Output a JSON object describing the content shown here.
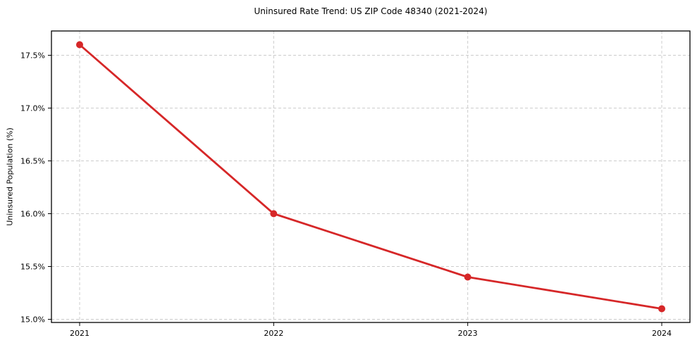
{
  "chart_data": {
    "type": "line",
    "title": "Uninsured Rate Trend: US ZIP Code 48340 (2021-2024)",
    "xlabel": "",
    "ylabel": "Uninsured Population (%)",
    "x": [
      2021,
      2022,
      2023,
      2024
    ],
    "xtick_labels": [
      "2021",
      "2022",
      "2023",
      "2024"
    ],
    "values": [
      17.6,
      16.0,
      15.4,
      15.1
    ],
    "yticks": [
      15.0,
      15.5,
      16.0,
      16.5,
      17.0,
      17.5
    ],
    "ytick_labels": [
      "15.0%",
      "15.5%",
      "16.0%",
      "16.5%",
      "17.0%",
      "17.5%"
    ],
    "ylim": [
      14.97,
      17.73
    ],
    "grid": true,
    "grid_style": "dashed",
    "legend_position": "none",
    "line_color": "#d62728",
    "marker": "circle",
    "grid_color": "#cccccc",
    "spine_color": "#000000",
    "background_color": "#ffffff"
  }
}
